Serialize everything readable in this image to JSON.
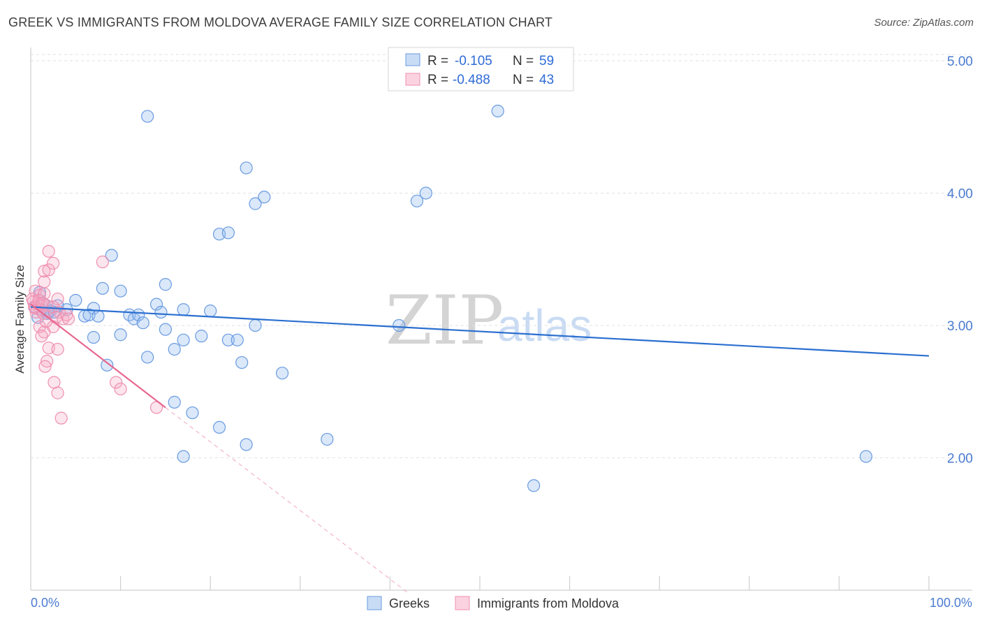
{
  "title": "GREEK VS IMMIGRANTS FROM MOLDOVA AVERAGE FAMILY SIZE CORRELATION CHART",
  "source": "Source: ZipAtlas.com",
  "watermark": {
    "zip": "ZIP",
    "atlas": "atlas"
  },
  "legend": {
    "series1": {
      "r_label": "R =",
      "r_value": "-0.105",
      "n_label": "N =",
      "n_value": "59"
    },
    "series2": {
      "r_label": "R =",
      "r_value": "-0.488",
      "n_label": "N =",
      "n_value": "43"
    }
  },
  "chart_data": {
    "type": "scatter",
    "title": "GREEK VS IMMIGRANTS FROM MOLDOVA AVERAGE FAMILY SIZE CORRELATION CHART",
    "xlabel": "",
    "ylabel": "Average Family Size",
    "xlim": [
      0,
      100
    ],
    "ylim": [
      1.0,
      5.1
    ],
    "x_tick_labels": [
      "0.0%",
      "100.0%"
    ],
    "y_ticks": [
      2.0,
      3.0,
      4.0,
      5.0
    ],
    "y_tick_labels": [
      "2.00",
      "3.00",
      "4.00",
      "5.00"
    ],
    "grid": true,
    "legend_position": "top-center",
    "colors": {
      "greeks": "#6a9be0",
      "moldova": "#ef8fb0",
      "greeks_line": "#2b6fd0",
      "moldova_line": "#e8678f"
    },
    "series": [
      {
        "name": "Greeks",
        "points": [
          [
            13,
            4.58
          ],
          [
            52,
            4.62
          ],
          [
            24,
            4.19
          ],
          [
            26,
            3.97
          ],
          [
            25,
            3.92
          ],
          [
            43,
            3.94
          ],
          [
            44,
            4.0
          ],
          [
            21,
            3.69
          ],
          [
            22,
            3.7
          ],
          [
            9,
            3.53
          ],
          [
            15,
            3.31
          ],
          [
            8,
            3.28
          ],
          [
            10,
            3.26
          ],
          [
            3,
            3.15
          ],
          [
            5,
            3.19
          ],
          [
            7,
            3.13
          ],
          [
            14,
            3.16
          ],
          [
            17,
            3.12
          ],
          [
            20,
            3.11
          ],
          [
            1,
            3.25
          ],
          [
            2,
            3.1
          ],
          [
            4,
            3.12
          ],
          [
            6,
            3.07
          ],
          [
            6.5,
            3.08
          ],
          [
            7.5,
            3.07
          ],
          [
            11,
            3.08
          ],
          [
            11.5,
            3.05
          ],
          [
            12,
            3.08
          ],
          [
            12.5,
            3.02
          ],
          [
            14.5,
            3.1
          ],
          [
            1.2,
            3.12
          ],
          [
            1.8,
            3.09
          ],
          [
            0.8,
            3.06
          ],
          [
            2.2,
            3.11
          ],
          [
            25,
            3.0
          ],
          [
            41,
            3.0
          ],
          [
            15,
            2.97
          ],
          [
            10,
            2.93
          ],
          [
            7,
            2.91
          ],
          [
            19,
            2.92
          ],
          [
            17,
            2.89
          ],
          [
            22,
            2.89
          ],
          [
            23,
            2.89
          ],
          [
            16,
            2.82
          ],
          [
            13,
            2.76
          ],
          [
            8.5,
            2.7
          ],
          [
            23.5,
            2.72
          ],
          [
            28,
            2.64
          ],
          [
            16,
            2.42
          ],
          [
            18,
            2.34
          ],
          [
            21,
            2.23
          ],
          [
            33,
            2.14
          ],
          [
            24,
            2.1
          ],
          [
            17,
            2.01
          ],
          [
            93,
            2.01
          ],
          [
            56,
            1.79
          ],
          [
            2.6,
            3.1
          ],
          [
            0.5,
            3.14
          ],
          [
            1.5,
            3.16
          ]
        ],
        "trend": {
          "x": [
            0,
            100
          ],
          "y": [
            3.14,
            2.77
          ]
        }
      },
      {
        "name": "Immigrants from Moldova",
        "points": [
          [
            2,
            3.56
          ],
          [
            2.5,
            3.47
          ],
          [
            8,
            3.48
          ],
          [
            1.5,
            3.41
          ],
          [
            2,
            3.42
          ],
          [
            1.5,
            3.33
          ],
          [
            0.5,
            3.26
          ],
          [
            1,
            3.23
          ],
          [
            1.5,
            3.24
          ],
          [
            3,
            3.2
          ],
          [
            0.3,
            3.18
          ],
          [
            0.8,
            3.16
          ],
          [
            1.2,
            3.15
          ],
          [
            0.5,
            3.13
          ],
          [
            1.0,
            3.12
          ],
          [
            1.8,
            3.15
          ],
          [
            2.5,
            3.14
          ],
          [
            3.2,
            3.1
          ],
          [
            0.6,
            3.1
          ],
          [
            1.4,
            3.09
          ],
          [
            2.8,
            3.06
          ],
          [
            3.6,
            3.05
          ],
          [
            4,
            3.08
          ],
          [
            4.2,
            3.05
          ],
          [
            1,
            2.99
          ],
          [
            2.5,
            2.99
          ],
          [
            1.5,
            2.95
          ],
          [
            1.2,
            2.92
          ],
          [
            2,
            2.83
          ],
          [
            3,
            2.82
          ],
          [
            1.8,
            2.73
          ],
          [
            1.6,
            2.69
          ],
          [
            2.6,
            2.57
          ],
          [
            3,
            2.49
          ],
          [
            9.5,
            2.57
          ],
          [
            10,
            2.52
          ],
          [
            3.4,
            2.3
          ],
          [
            14,
            2.38
          ],
          [
            0.2,
            3.2
          ],
          [
            0.4,
            3.14
          ],
          [
            0.9,
            3.19
          ],
          [
            1.3,
            3.17
          ],
          [
            1.7,
            3.03
          ]
        ],
        "trend": {
          "x": [
            0,
            15
          ],
          "y": [
            3.16,
            2.38
          ]
        },
        "trend_extension": {
          "x": [
            15,
            42
          ],
          "y": [
            2.38,
            0.98
          ]
        }
      }
    ]
  },
  "bottom_legend": {
    "series1": "Greeks",
    "series2": "Immigrants from Moldova"
  }
}
